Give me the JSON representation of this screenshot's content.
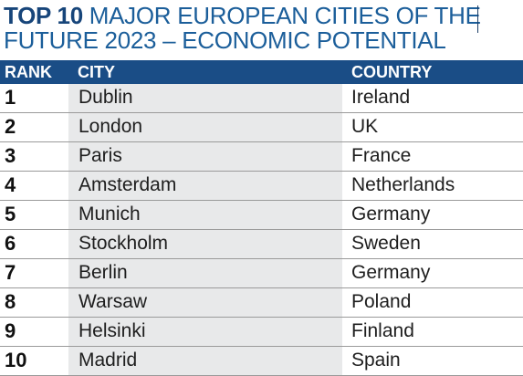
{
  "title": {
    "bold": "TOP 10",
    "rest": " MAJOR EUROPEAN CITIES OF THE",
    "line2": "FUTURE 2023 – ECONOMIC POTENTIAL"
  },
  "table": {
    "headers": {
      "rank": "RANK",
      "city": "CITY",
      "country": "COUNTRY"
    },
    "rows": [
      {
        "rank": "1",
        "city": "Dublin",
        "country": "Ireland"
      },
      {
        "rank": "2",
        "city": "London",
        "country": "UK"
      },
      {
        "rank": "3",
        "city": "Paris",
        "country": "France"
      },
      {
        "rank": "4",
        "city": "Amsterdam",
        "country": "Netherlands"
      },
      {
        "rank": "5",
        "city": "Munich",
        "country": "Germany"
      },
      {
        "rank": "6",
        "city": "Stockholm",
        "country": "Sweden"
      },
      {
        "rank": "7",
        "city": "Berlin",
        "country": "Germany"
      },
      {
        "rank": "8",
        "city": "Warsaw",
        "country": "Poland"
      },
      {
        "rank": "9",
        "city": "Helsinki",
        "country": "Finland"
      },
      {
        "rank": "10",
        "city": "Madrid",
        "country": "Spain"
      }
    ]
  },
  "colors": {
    "title": "#1b5e9a",
    "header_bg": "#1a4d86",
    "city_column_bg": "#e8e9ea"
  }
}
